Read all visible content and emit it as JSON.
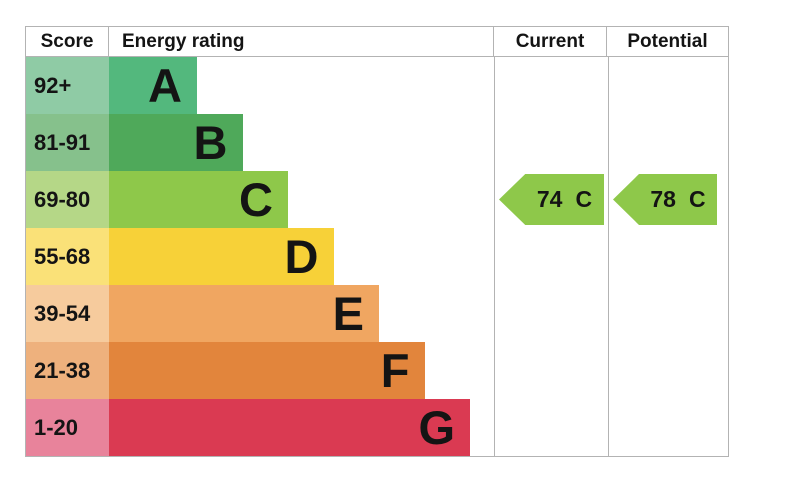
{
  "header": {
    "score": "Score",
    "energy_rating": "Energy rating",
    "current": "Current",
    "potential": "Potential"
  },
  "bands": [
    {
      "letter": "A",
      "range": "92+",
      "color": "#53b87d",
      "tint": "#8fcba5"
    },
    {
      "letter": "B",
      "range": "81-91",
      "color": "#4fa95a",
      "tint": "#86c18c"
    },
    {
      "letter": "C",
      "range": "69-80",
      "color": "#8ec84a",
      "tint": "#b5d787"
    },
    {
      "letter": "D",
      "range": "55-68",
      "color": "#f7d138",
      "tint": "#fae178"
    },
    {
      "letter": "E",
      "range": "39-54",
      "color": "#f0a661",
      "tint": "#f6cb9d"
    },
    {
      "letter": "F",
      "range": "21-38",
      "color": "#e2853c",
      "tint": "#eeb17d"
    },
    {
      "letter": "G",
      "range": "1-20",
      "color": "#da3a52",
      "tint": "#e8839b"
    }
  ],
  "ratings": {
    "current": {
      "value": "74",
      "letter": "C",
      "color": "#8ec84a"
    },
    "potential": {
      "value": "78",
      "letter": "C",
      "color": "#8ec84a"
    }
  },
  "chart_data": {
    "type": "bar",
    "title": "Energy rating",
    "columns": [
      "Score",
      "Energy rating",
      "Current",
      "Potential"
    ],
    "categories": [
      "A",
      "B",
      "C",
      "D",
      "E",
      "F",
      "G"
    ],
    "score_ranges": [
      "92+",
      "81-91",
      "69-80",
      "55-68",
      "39-54",
      "21-38",
      "1-20"
    ],
    "band_colors": [
      "#53b87d",
      "#4fa95a",
      "#8ec84a",
      "#f7d138",
      "#f0a661",
      "#e2853c",
      "#da3a52"
    ],
    "bar_lengths_relative": [
      1,
      1.52,
      2.03,
      2.55,
      3.07,
      3.58,
      4.1
    ],
    "current": {
      "score": 74,
      "rating": "C"
    },
    "potential": {
      "score": 78,
      "rating": "C"
    },
    "legend_position": "none",
    "grid": false
  }
}
